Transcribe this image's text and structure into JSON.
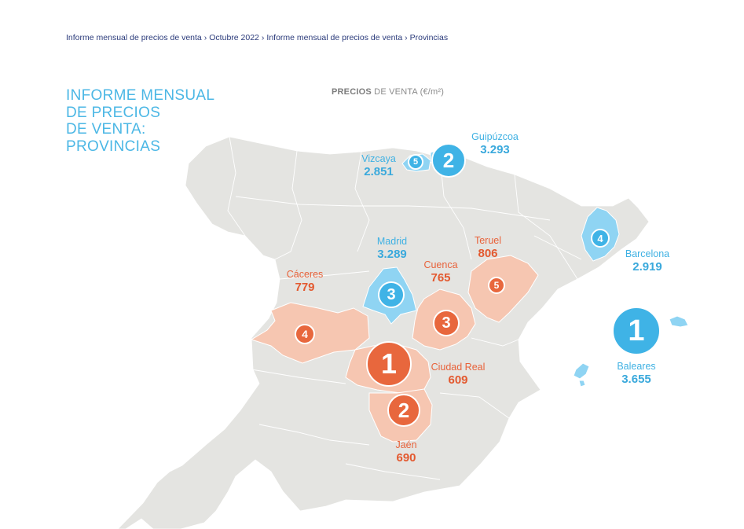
{
  "breadcrumb": {
    "items": [
      "Informe mensual de precios de venta",
      "Octubre 2022",
      "Informe mensual de precios de venta",
      "Provincias"
    ],
    "separator": "›"
  },
  "title": {
    "lines": [
      "INFORME MENSUAL",
      "DE PRECIOS",
      "DE VENTA:",
      "PROVINCIAS"
    ]
  },
  "subtitle": {
    "bold": "PRECIOS",
    "rest": " DE VENTA (€/m²)"
  },
  "colors": {
    "land": "#e4e4e1",
    "blue_fill": "#8fd4f3",
    "orange_fill": "#f6c6b1",
    "blue_circle": "#3fb3e6",
    "orange_circle": "#e8673d"
  },
  "blue_ranking": [
    {
      "rank": "1",
      "name": "Baleares",
      "value": "3.655"
    },
    {
      "rank": "2",
      "name": "Guipúzcoa",
      "value": "3.293"
    },
    {
      "rank": "3",
      "name": "Madrid",
      "value": "3.289"
    },
    {
      "rank": "4",
      "name": "Barcelona",
      "value": "2.919"
    },
    {
      "rank": "5",
      "name": "Vizcaya",
      "value": "2.851"
    }
  ],
  "orange_ranking": [
    {
      "rank": "1",
      "name": "Ciudad Real",
      "value": "609"
    },
    {
      "rank": "2",
      "name": "Jaén",
      "value": "690"
    },
    {
      "rank": "3",
      "name": "Cuenca",
      "value": "765"
    },
    {
      "rank": "4",
      "name": "Cáceres",
      "value": "779"
    },
    {
      "rank": "5",
      "name": "Teruel",
      "value": "806"
    }
  ]
}
